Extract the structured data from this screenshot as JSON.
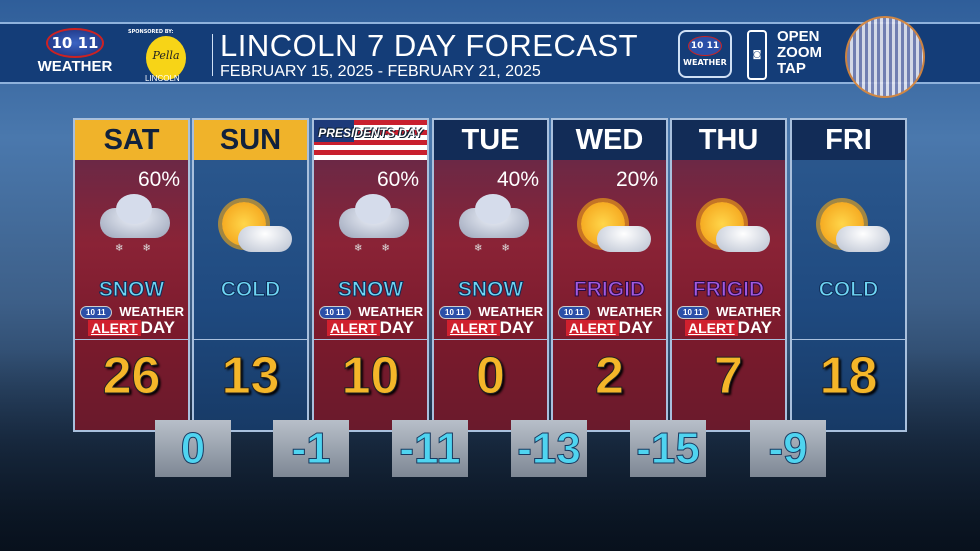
{
  "header": {
    "station_logo": "10 11",
    "station_label": "WEATHER",
    "sponsored_by": "SPONSORED BY:",
    "sponsor_logo": "Pella",
    "sponsor_city": "LINCOLN",
    "title": "LINCOLN 7 DAY FORECAST",
    "dates": "FEBRUARY 15, 2025  -  FEBRUARY 21, 2025",
    "app_logo": "10 11",
    "app_label": "WEATHER",
    "cta": [
      "OPEN",
      "ZOOM",
      "TAP"
    ]
  },
  "colors": {
    "alert_column": "#8a2336",
    "normal_column": "#1f4a80",
    "header_yellow": "#f0b32a",
    "high_temp": "#f4b629",
    "low_temp": "#4fd4f0"
  },
  "alert": {
    "line1": "WEATHER",
    "badge": "10 11",
    "alert": "ALERT",
    "day": "DAY"
  },
  "days": [
    {
      "name": "SAT",
      "precip": "60%",
      "icon": "cloud-snow-icon",
      "condition": "SNOW",
      "alert_day": true,
      "high": "26"
    },
    {
      "name": "SUN",
      "precip": "",
      "icon": "sun-cloud-icon",
      "condition": "COLD",
      "alert_day": false,
      "high": "13"
    },
    {
      "name": "PRESIDENTS DAY",
      "precip": "60%",
      "icon": "cloud-snow-icon",
      "condition": "SNOW",
      "alert_day": true,
      "high": "10"
    },
    {
      "name": "TUE",
      "precip": "40%",
      "icon": "cloud-snow-icon",
      "condition": "SNOW",
      "alert_day": true,
      "high": "0"
    },
    {
      "name": "WED",
      "precip": "20%",
      "icon": "sun-cloud-icon",
      "condition": "FRIGID",
      "alert_day": true,
      "high": "2"
    },
    {
      "name": "THU",
      "precip": "",
      "icon": "sun-cloud-icon",
      "condition": "FRIGID",
      "alert_day": true,
      "high": "7"
    },
    {
      "name": "FRI",
      "precip": "",
      "icon": "sun-cloud-icon",
      "condition": "COLD",
      "alert_day": false,
      "high": "18"
    }
  ],
  "lows": [
    "0",
    "-1",
    "-11",
    "-13",
    "-15",
    "-9"
  ]
}
